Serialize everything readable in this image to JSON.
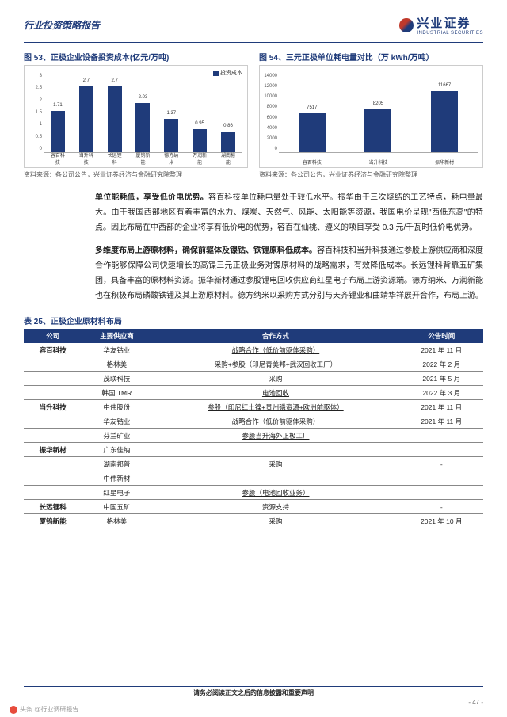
{
  "header": {
    "category": "行业投资策略报告",
    "brand_cn": "兴业证券",
    "brand_en": "INDUSTRIAL SECURITIES"
  },
  "chart53": {
    "title": "图 53、正极企业设备投资成本(亿元/万吨)",
    "legend": "投资成本",
    "ylim": [
      0,
      3
    ],
    "ystep": 0.5,
    "categories": [
      "容百科技",
      "当升科技",
      "长远锂科",
      "厦钨新能",
      "德方纳米",
      "万润新能",
      "湖南裕能"
    ],
    "values": [
      1.71,
      2.7,
      2.7,
      2.03,
      1.37,
      0.95,
      0.86
    ],
    "bar_color": "#1f3b7a",
    "grid_color": "#dddddd",
    "source": "资料来源：各公司公告，兴业证券经济与金融研究院整理"
  },
  "chart54": {
    "title": "图 54、三元正极单位耗电量对比（万 kWh/万吨）",
    "ylim": [
      0,
      14000
    ],
    "ystep": 2000,
    "categories": [
      "容百科技",
      "当升科技",
      "振华新材"
    ],
    "values": [
      7517,
      8205,
      11667
    ],
    "bar_color": "#1f3b7a",
    "grid_color": "#dddddd",
    "source": "资料来源：各公司公告，兴业证券经济与金融研究院整理"
  },
  "para1_lead": "单位能耗低，享受低价电优势。",
  "para1": "容百科技单位耗电量处于较低水平。振华由于三次烧结的工艺特点，耗电量最大。由于我国西部地区有着丰富的水力、煤炭、天然气、风能、太阳能等资源，我国电价呈现\"西低东高\"的特点。因此布局在中西部的企业将享有低价电的优势，容百在仙桃、遵义的项目享受 0.3 元/千瓦时低价电优势。",
  "para2_lead": "多维度布局上游原材料，确保前驱体及镍钴、铁锂原料低成本。",
  "para2": "容百科技和当升科技通过参股上游供应商和深度合作能够保障公司快速增长的高镍三元正极业务对镍原材料的战略需求，有效降低成本。长远锂科背靠五矿集团，具备丰富的原材料资源。振华新材通过参股锂电回收供应商红星电子布局上游资源端。德方纳米、万润新能也在积极布局磷酸铁锂及其上游原材料。德方纳米以采购方式分别与天齐锂业和曲靖华祥展开合作，布局上游。",
  "table": {
    "title": "表 25、正极企业原材料布局",
    "columns": [
      "公司",
      "主要供应商",
      "合作方式",
      "公告时间"
    ],
    "rows": [
      [
        "容百科技",
        "华友钴业",
        "战略合作（低价前驱体采购）",
        "2021 年 11 月",
        true
      ],
      [
        "",
        "格林美",
        "采购+参股（印尼青美邦+武汉回收工厂）",
        "2022 年 2 月",
        true
      ],
      [
        "",
        "茂联科技",
        "采购",
        "2021 年 5 月",
        false
      ],
      [
        "",
        "韩国 TMR",
        "电池回收",
        "2022 年 3 月",
        true
      ],
      [
        "当升科技",
        "中伟股份",
        "参股（印尼红土镍+贵州磷资源+欧洲前驱体）",
        "2021 年 11 月",
        true
      ],
      [
        "",
        "华友钴业",
        "战略合作（低价前驱体采购）",
        "2021 年 11 月",
        true
      ],
      [
        "",
        "芬兰矿业",
        "参股当升海外正极工厂",
        "",
        true
      ],
      [
        "振华新材",
        "广东佳纳",
        "",
        "",
        false
      ],
      [
        "",
        "湖南邦普",
        "采购",
        "-",
        false
      ],
      [
        "",
        "中伟新材",
        "",
        "",
        false
      ],
      [
        "",
        "红星电子",
        "参股（电池回收业务）",
        "",
        true
      ],
      [
        "长远锂科",
        "中国五矿",
        "资源支持",
        "-",
        false
      ],
      [
        "厦钨新能",
        "格林美",
        "采购",
        "2021 年 10 月",
        false
      ]
    ]
  },
  "footer": {
    "disclaimer": "请务必阅读正文之后的信息披露和重要声明",
    "page": "- 47 -"
  },
  "watermark": "头条 @行业调研报告"
}
